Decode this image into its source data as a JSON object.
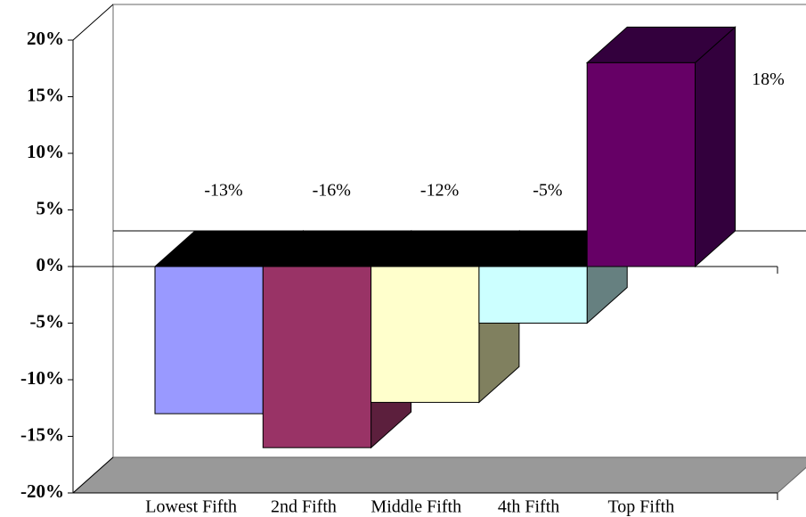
{
  "chart_data": {
    "type": "bar3d",
    "categories": [
      "Lowest Fifth",
      "2nd Fifth",
      "Middle Fifth",
      "4th Fifth",
      "Top Fifth"
    ],
    "values": [
      -13,
      -16,
      -12,
      -5,
      18
    ],
    "value_labels": [
      "-13%",
      "-16%",
      "-12%",
      "-5%",
      "18%"
    ],
    "colors": [
      "#9999ff",
      "#993366",
      "#ffffcc",
      "#ccffff",
      "#660066"
    ],
    "side_colors": [
      "#5c5c99",
      "#5c1f3d",
      "#80805f",
      "#668080",
      "#33003d"
    ],
    "ylim": [
      -20,
      20
    ],
    "yticks": [
      {
        "value": -20,
        "label": "-20%"
      },
      {
        "value": -15,
        "label": "-15%"
      },
      {
        "value": -10,
        "label": "-10%"
      },
      {
        "value": -5,
        "label": "-5%"
      },
      {
        "value": 0,
        "label": "0%"
      },
      {
        "value": 5,
        "label": "5%"
      },
      {
        "value": 10,
        "label": "10%"
      },
      {
        "value": 15,
        "label": "15%"
      },
      {
        "value": 20,
        "label": "20%"
      }
    ]
  }
}
